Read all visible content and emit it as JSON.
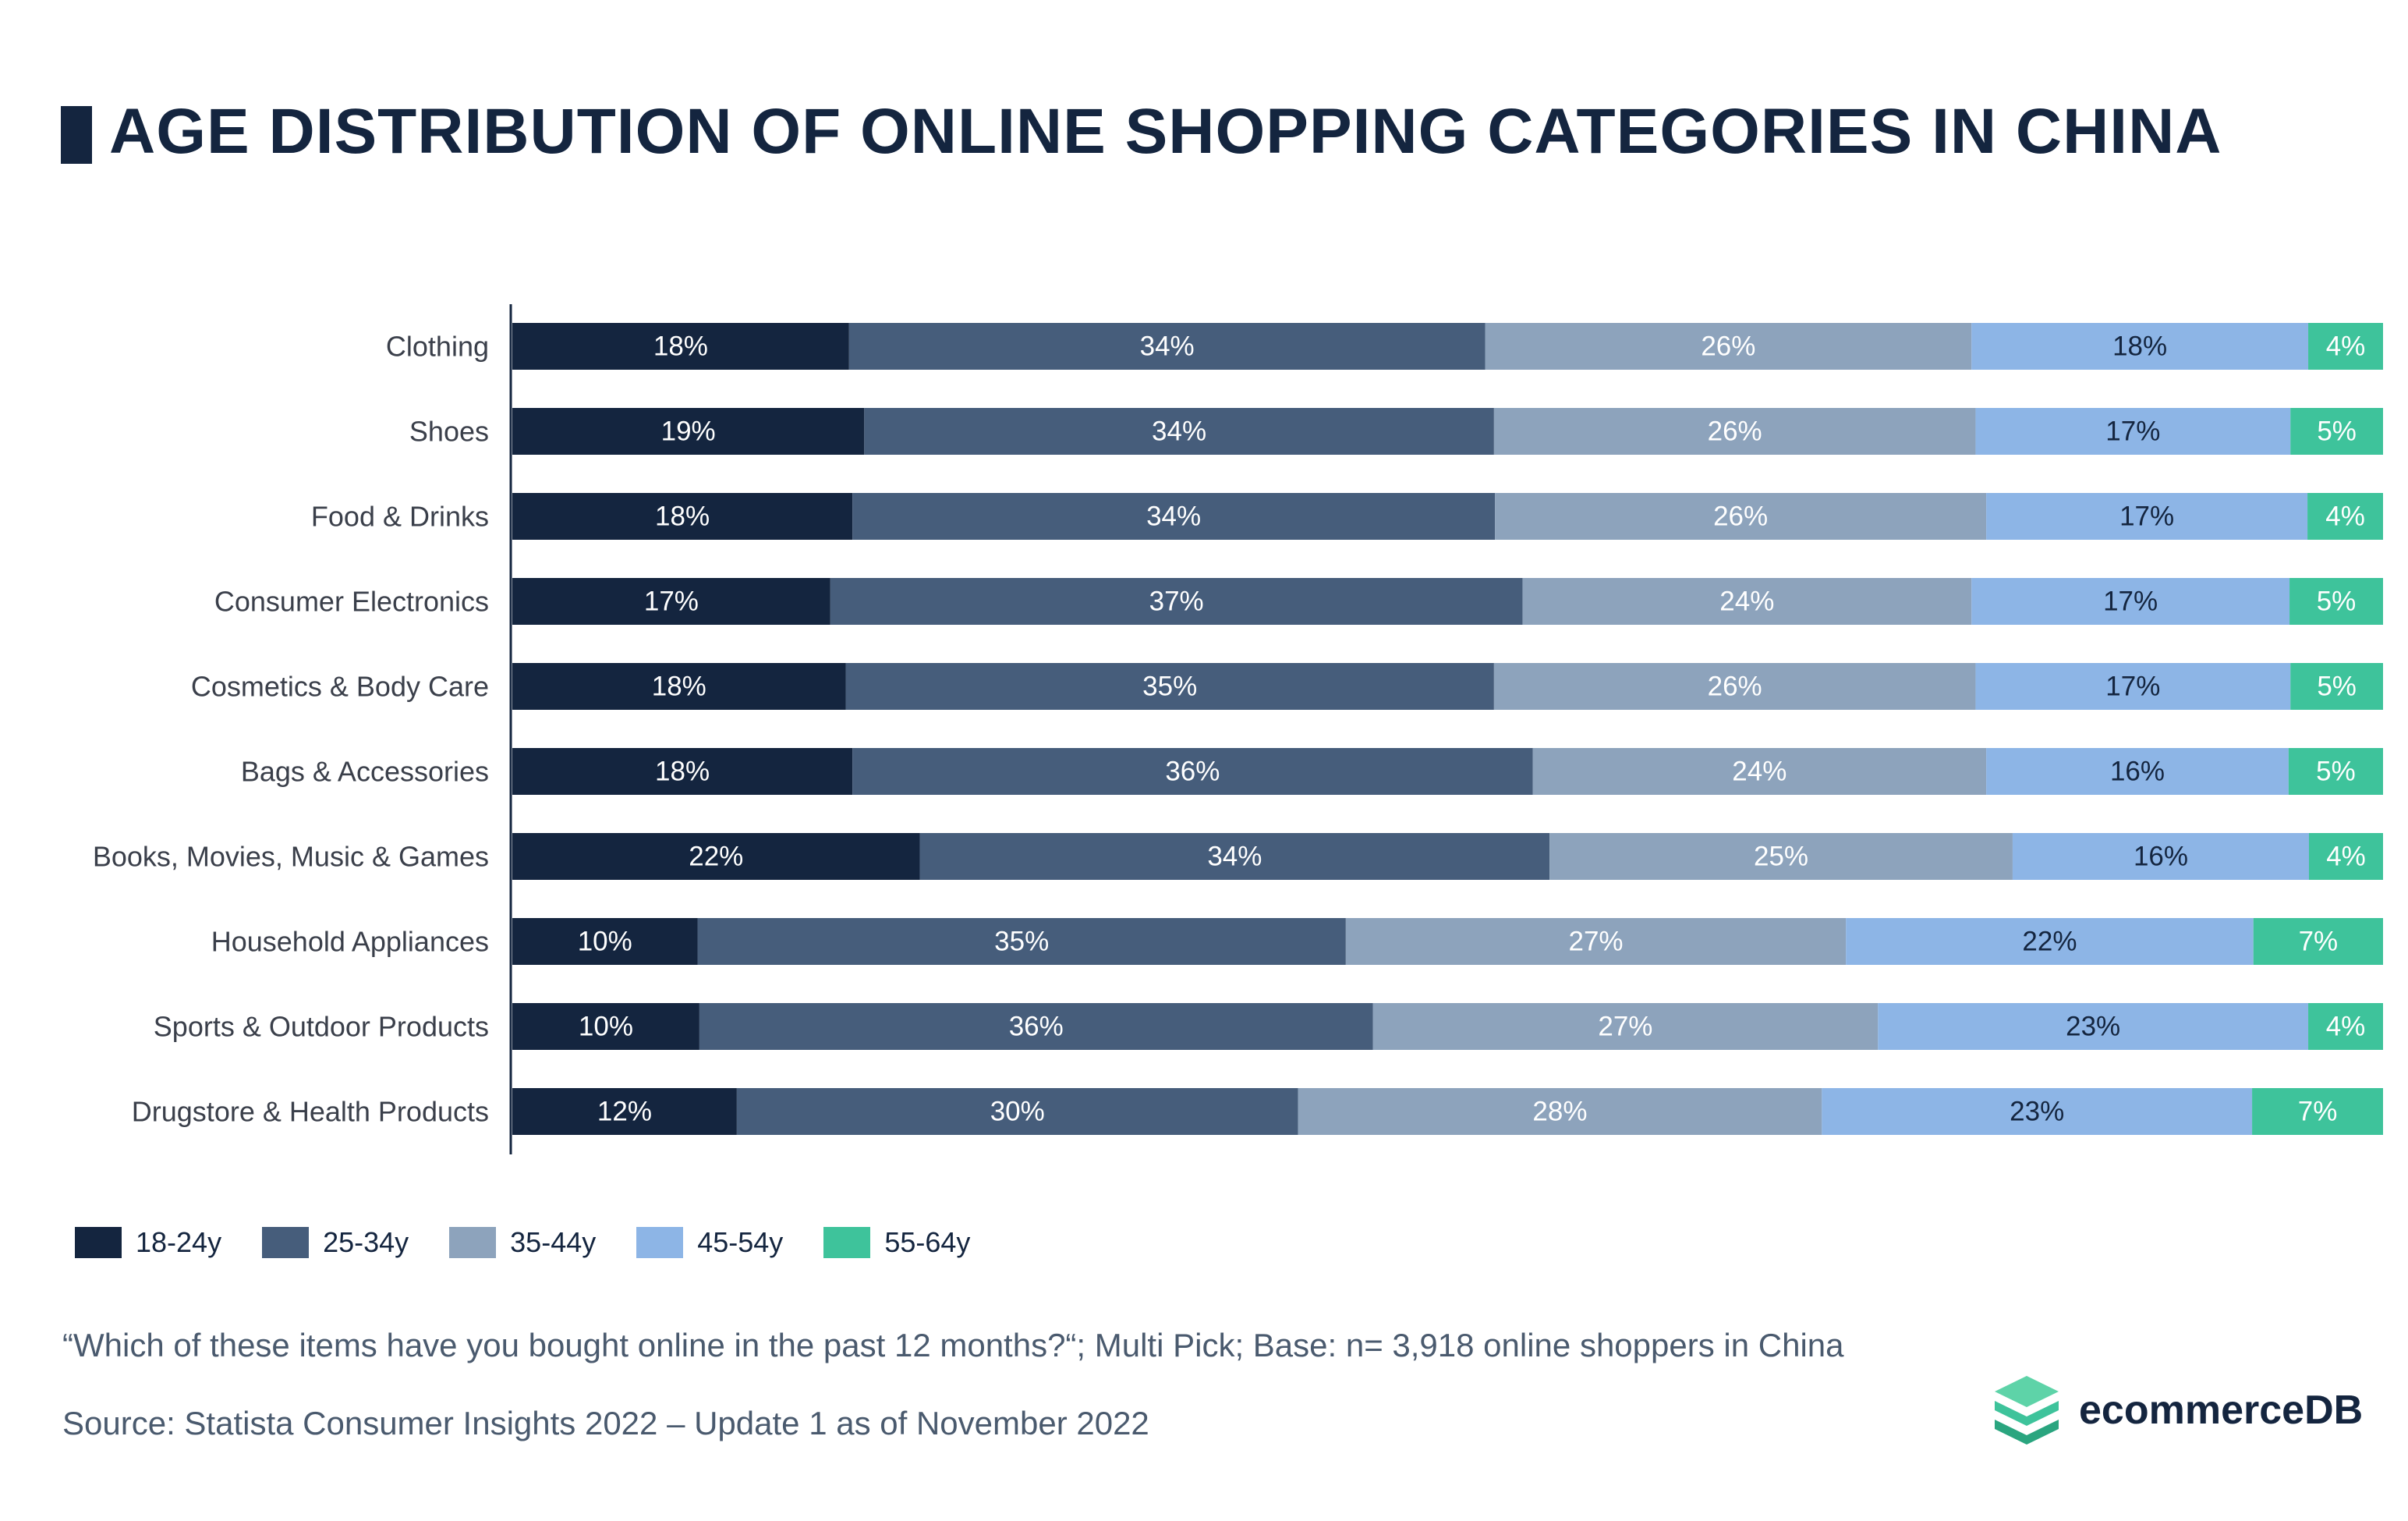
{
  "title": "AGE DISTRIBUTION OF ONLINE SHOPPING CATEGORIES IN CHINA",
  "colors": [
    "#14253f",
    "#465d7b",
    "#8da3bc",
    "#8db5e6",
    "#3ec39b"
  ],
  "chart_data": {
    "type": "bar",
    "orientation": "horizontal",
    "stacked": true,
    "normalized": true,
    "categories": [
      "Clothing",
      "Shoes",
      "Food & Drinks",
      "Consumer Electronics",
      "Cosmetics & Body Care",
      "Bags & Accessories",
      "Books, Movies, Music & Games",
      "Household Appliances",
      "Sports & Outdoor Products",
      "Drugstore & Health Products"
    ],
    "series": [
      {
        "name": "18-24y",
        "values": [
          18,
          19,
          18,
          17,
          18,
          18,
          22,
          10,
          10,
          12
        ]
      },
      {
        "name": "25-34y",
        "values": [
          34,
          34,
          34,
          37,
          35,
          36,
          34,
          35,
          36,
          30
        ]
      },
      {
        "name": "35-44y",
        "values": [
          26,
          26,
          26,
          24,
          26,
          24,
          25,
          27,
          27,
          28
        ]
      },
      {
        "name": "45-54y",
        "values": [
          18,
          17,
          17,
          17,
          17,
          16,
          16,
          22,
          23,
          23
        ]
      },
      {
        "name": "55-64y",
        "values": [
          4,
          5,
          4,
          5,
          5,
          5,
          4,
          7,
          4,
          7
        ]
      }
    ],
    "value_suffix": "%",
    "legend_position": "bottom-left",
    "grid": false
  },
  "footnote": "“Which of these items have you bought online in the past 12 months?“; Multi Pick; Base: n= 3,918 online shoppers in China",
  "source": "Source: Statista Consumer Insights 2022 – Update 1 as of November 2022",
  "logo": {
    "text": "ecommerceDB",
    "icon": "stacked-layers-logo-icon"
  }
}
